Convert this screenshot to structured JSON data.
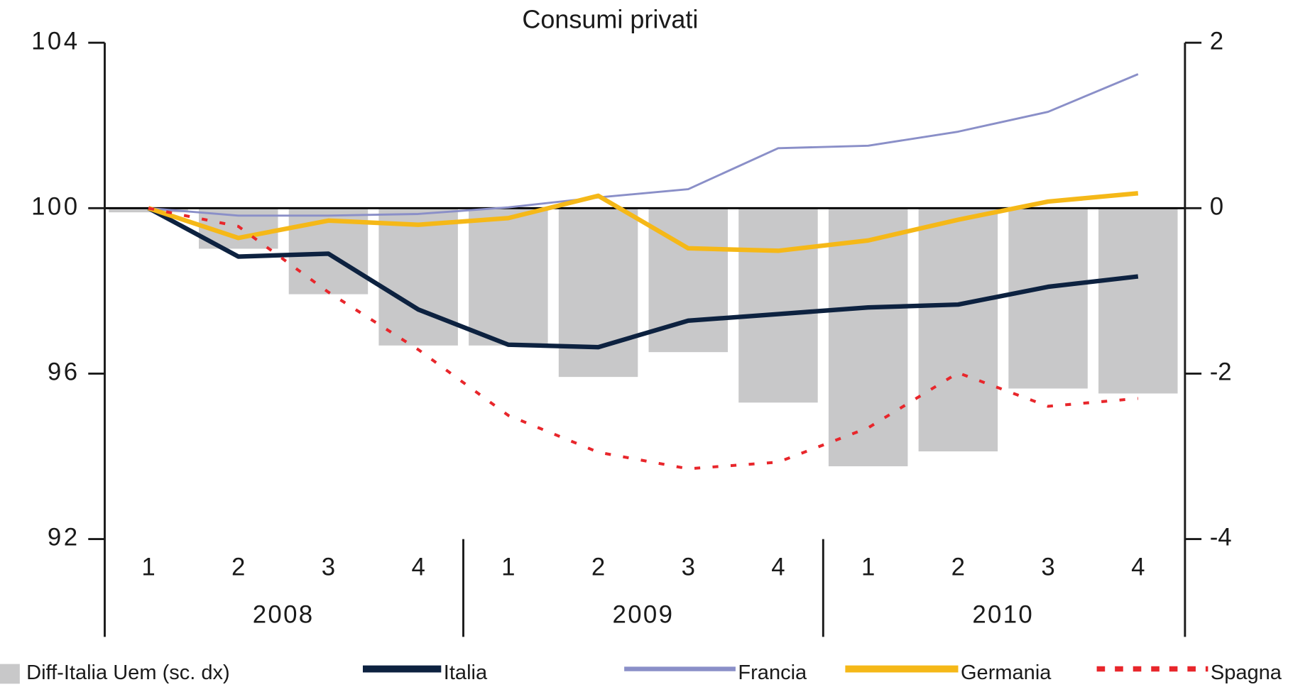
{
  "chart_data": {
    "type": "combo",
    "title": "Consumi privati",
    "categories": [
      "1",
      "2",
      "3",
      "4",
      "1",
      "2",
      "3",
      "4",
      "1",
      "2",
      "3",
      "4"
    ],
    "x_groups": [
      "2008",
      "2009",
      "2010"
    ],
    "ylim": [
      92,
      104
    ],
    "yticks": [
      92,
      96,
      100,
      104
    ],
    "y2lim": [
      -4,
      2
    ],
    "y2ticks": [
      -4,
      -2,
      0,
      2
    ],
    "series": [
      {
        "name": "Diff-Italia Uem (sc. dx)",
        "type": "bar",
        "axis": "y2",
        "color": "#c8c8c9",
        "values": [
          -0.05,
          -0.49,
          -1.04,
          -1.66,
          -1.66,
          -2.04,
          -1.74,
          -2.35,
          -3.12,
          -2.94,
          -2.18,
          -2.24
        ]
      },
      {
        "name": "Italia",
        "type": "line",
        "style": "thick",
        "color": "#0d2240",
        "values": [
          100,
          98.83,
          98.9,
          97.55,
          96.7,
          96.64,
          97.28,
          97.44,
          97.6,
          97.67,
          98.1,
          98.35
        ]
      },
      {
        "name": "Francia",
        "type": "line",
        "style": "thin",
        "color": "#8a8fc8",
        "values": [
          100,
          99.82,
          99.82,
          99.86,
          100.02,
          100.26,
          100.46,
          101.45,
          101.51,
          101.85,
          102.33,
          103.24
        ]
      },
      {
        "name": "Germania",
        "type": "line",
        "style": "thick",
        "color": "#f5b818",
        "values": [
          100,
          99.28,
          99.7,
          99.6,
          99.76,
          100.3,
          99.03,
          98.97,
          99.22,
          99.72,
          100.16,
          100.36
        ]
      },
      {
        "name": "Spagna",
        "type": "line",
        "style": "dotted",
        "color": "#e8262b",
        "values": [
          100,
          99.56,
          97.97,
          96.58,
          94.99,
          94.1,
          93.7,
          93.86,
          94.69,
          96.02,
          95.21,
          95.4
        ]
      }
    ]
  }
}
